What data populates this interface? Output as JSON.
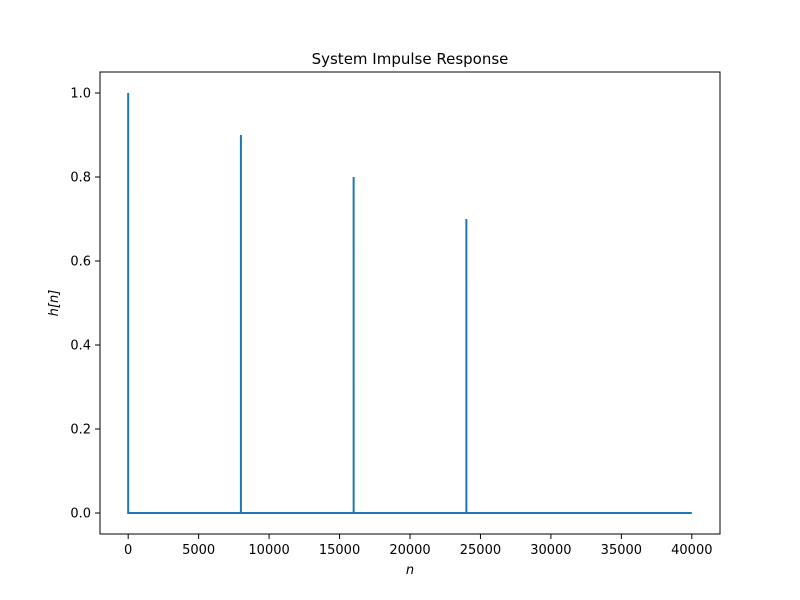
{
  "chart_data": {
    "type": "line",
    "title": "System Impulse Response",
    "xlabel": "n",
    "ylabel": "h[n]",
    "xlim": [
      -2000,
      42000
    ],
    "ylim": [
      -0.05,
      1.05
    ],
    "x_ticks": [
      0,
      5000,
      10000,
      15000,
      20000,
      25000,
      30000,
      35000,
      40000
    ],
    "x_tick_labels": [
      "0",
      "5000",
      "10000",
      "15000",
      "20000",
      "25000",
      "30000",
      "35000",
      "40000"
    ],
    "y_ticks": [
      0.0,
      0.2,
      0.4,
      0.6,
      0.8,
      1.0
    ],
    "y_tick_labels": [
      "0.0",
      "0.2",
      "0.4",
      "0.6",
      "0.8",
      "1.0"
    ],
    "grid": false,
    "series": [
      {
        "color": "#1f77b4",
        "x": [
          0,
          0,
          1,
          8000,
          8000,
          8001,
          16000,
          16000,
          16001,
          24000,
          24000,
          24001,
          40000
        ],
        "y": [
          0,
          1.0,
          0,
          0,
          0.9,
          0,
          0,
          0.8,
          0,
          0,
          0.7,
          0,
          0
        ]
      }
    ]
  }
}
